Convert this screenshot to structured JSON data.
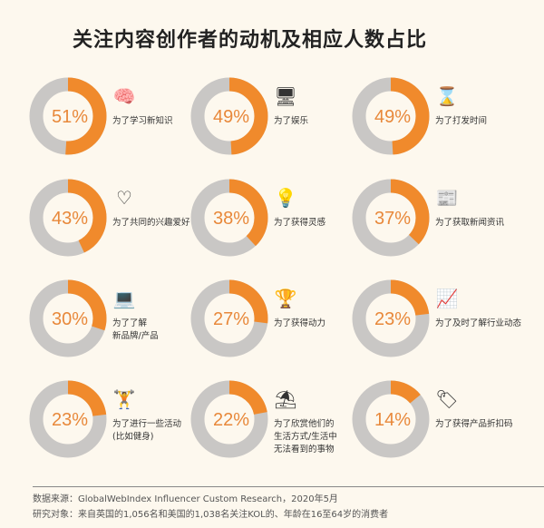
{
  "title": "关注内容创作者的动机及相应人数占比",
  "colors": {
    "filled": "#f08a2c",
    "remaining": "#c9c7c5",
    "background": "#fdf8ee"
  },
  "chart_data": {
    "type": "pie",
    "title": "关注内容创作者的动机及相应人数占比",
    "items": [
      {
        "label": "为了学习新知识",
        "value": 51,
        "display": "51%",
        "icon": "brain-icon",
        "glyph": "🧠"
      },
      {
        "label": "为了娱乐",
        "value": 49,
        "display": "49%",
        "icon": "monitor-smiley-icon",
        "glyph": "🖥"
      },
      {
        "label": "为了打发时间",
        "value": 49,
        "display": "49%",
        "icon": "hourglass-icon",
        "glyph": "⌛"
      },
      {
        "label": "为了共同的兴趣爱好",
        "value": 43,
        "display": "43%",
        "icon": "hearts-icon",
        "glyph": "♡"
      },
      {
        "label": "为了获得灵感",
        "value": 38,
        "display": "38%",
        "icon": "lightbulb-icon",
        "glyph": "💡"
      },
      {
        "label": "为了获取新闻资讯",
        "value": 37,
        "display": "37%",
        "icon": "news-reader-icon",
        "glyph": "📰"
      },
      {
        "label": "为了了解\n新品牌/产品",
        "value": 30,
        "display": "30%",
        "icon": "laptop-chat-icon",
        "glyph": "💻"
      },
      {
        "label": "为了获得动力",
        "value": 27,
        "display": "27%",
        "icon": "podium-icon",
        "glyph": "🏆"
      },
      {
        "label": "为了及时了解行业动态",
        "value": 23,
        "display": "23%",
        "icon": "presentation-icon",
        "glyph": "📈"
      },
      {
        "label": "为了进行一些活动\n(比如健身)",
        "value": 23,
        "display": "23%",
        "icon": "dumbbell-icon",
        "glyph": "🏋"
      },
      {
        "label": "为了欣赏他们的\n生活方式/生活中\n无法看到的事物",
        "value": 22,
        "display": "22%",
        "icon": "beach-chair-icon",
        "glyph": "⛱"
      },
      {
        "label": "为了获得产品折扣码",
        "value": 14,
        "display": "14%",
        "icon": "discount-tag-icon",
        "glyph": "🏷"
      }
    ]
  },
  "footer": {
    "source": "数据来源：GlobalWebIndex Influencer Custom Research，2020年5月",
    "subjects": "研究对象：来自英国的1,056名和美国的1,038名关注KOL的、年龄在16至64岁的消费者"
  }
}
